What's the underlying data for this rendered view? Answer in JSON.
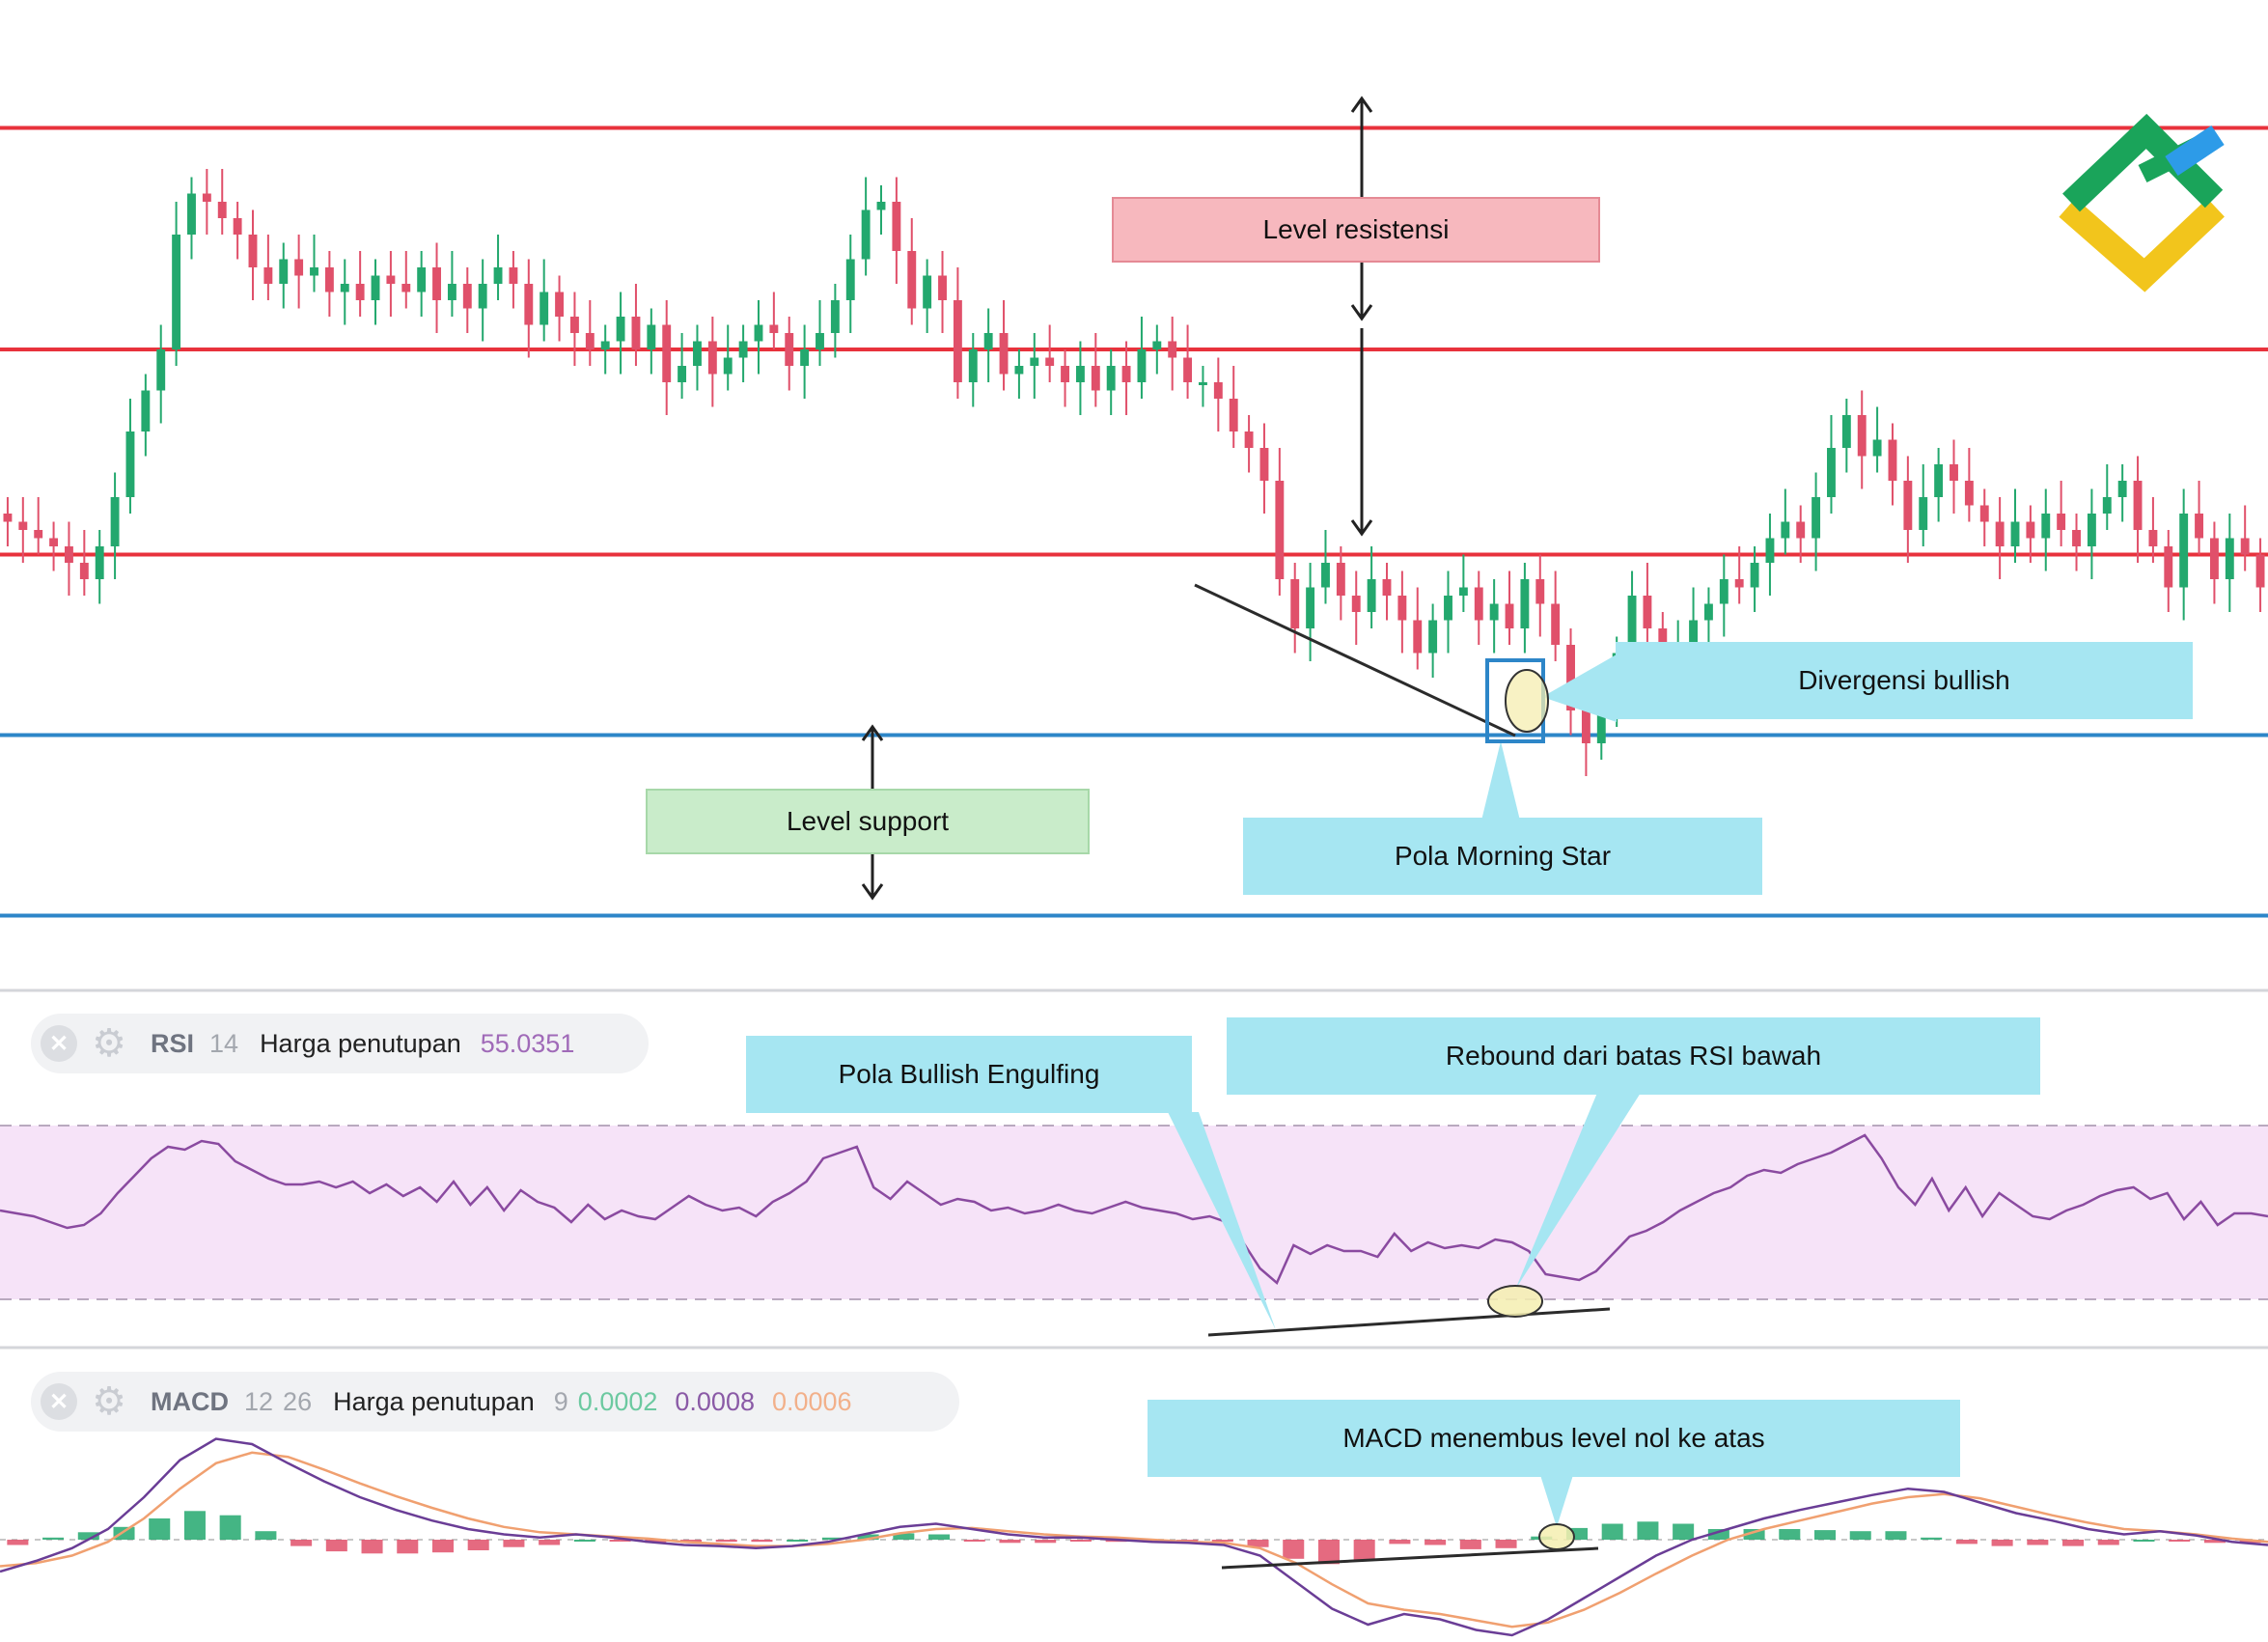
{
  "colors": {
    "resistance": "#e8323c",
    "support": "#2d86c8",
    "bull": "#23a86e",
    "bear": "#e0506a",
    "callout": "#a6e6f2",
    "resistance_box": "#f7b8be",
    "support_box": "#c9ecca",
    "rsi_fill": "#f6e3f8",
    "rsi_line": "#8a4aa0",
    "macd_line": "#6a3d96",
    "signal_line": "#f0a070",
    "logo_green": "#1aa45a",
    "logo_blue": "#2d9be8",
    "logo_yellow": "#f2c51c"
  },
  "annotations": {
    "resistance_label": "Level resistensi",
    "support_label": "Level support",
    "bullish_divergence": "Divergensi bullish",
    "morning_star": "Pola Morning Star",
    "bullish_engulfing": "Pola Bullish Engulfing",
    "rsi_rebound": "Rebound dari batas RSI bawah",
    "macd_cross": "MACD menembus level nol ke atas"
  },
  "rsi_panel": {
    "close_icon": "close-icon",
    "settings_icon": "gear-icon",
    "name": "RSI",
    "period": "14",
    "source": "Harga penutupan",
    "value": "55.0351"
  },
  "macd_panel": {
    "close_icon": "close-icon",
    "settings_icon": "gear-icon",
    "name": "MACD",
    "fast": "12",
    "slow": "26",
    "source": "Harga penutupan",
    "signal": "9",
    "histogram_value": "0.0002",
    "macd_value": "0.0008",
    "signal_value": "0.0006"
  },
  "chart_data": [
    {
      "type": "candlestick",
      "y_range": [
        0,
        100
      ],
      "levels": [
        {
          "kind": "resistance",
          "value": 95
        },
        {
          "kind": "resistance",
          "value": 68
        },
        {
          "kind": "resistance",
          "value": 43
        },
        {
          "kind": "support",
          "value": 21
        },
        {
          "kind": "support",
          "value": -1
        }
      ],
      "closes": [
        47,
        46,
        45,
        44,
        42,
        40,
        44,
        50,
        58,
        63,
        68,
        82,
        87,
        86,
        84,
        82,
        78,
        76,
        79,
        77,
        78,
        75,
        76,
        74,
        77,
        76,
        75,
        78,
        74,
        76,
        73,
        76,
        78,
        76,
        71,
        75,
        72,
        70,
        68,
        69,
        72,
        68,
        71,
        64,
        66,
        69,
        65,
        67,
        69,
        71,
        70,
        66,
        68,
        70,
        74,
        79,
        85,
        86,
        80,
        73,
        77,
        74,
        64,
        68,
        70,
        65,
        66,
        67,
        66,
        64,
        66,
        63,
        66,
        64,
        68,
        69,
        67,
        64,
        64,
        62,
        58,
        56,
        52,
        40,
        34,
        39,
        42,
        38,
        36,
        40,
        38,
        35,
        31,
        35,
        38,
        39,
        35,
        37,
        34,
        40,
        37,
        32,
        24,
        20,
        25,
        31,
        38,
        34,
        29,
        32,
        35,
        37,
        40,
        39,
        42,
        45,
        47,
        45,
        50,
        56,
        60,
        55,
        57,
        52,
        46,
        50,
        54,
        52,
        49,
        47,
        44,
        47,
        45,
        48,
        46,
        44,
        48,
        50,
        52,
        46,
        44,
        39,
        48,
        45,
        40,
        45,
        43,
        39
      ]
    },
    {
      "type": "line",
      "name": "RSI",
      "y_range": [
        0,
        100
      ],
      "band": [
        30,
        70
      ],
      "values": [
        52,
        51,
        50,
        48,
        46,
        47,
        51,
        58,
        64,
        70,
        74,
        73,
        76,
        75,
        69,
        66,
        63,
        61,
        61,
        62,
        60,
        62,
        58,
        61,
        57,
        60,
        55,
        62,
        54,
        60,
        52,
        59,
        55,
        53,
        48,
        54,
        49,
        52,
        50,
        49,
        53,
        57,
        54,
        52,
        53,
        50,
        55,
        58,
        62,
        70,
        72,
        74,
        60,
        56,
        62,
        58,
        54,
        56,
        55,
        52,
        53,
        51,
        52,
        54,
        52,
        51,
        53,
        55,
        53,
        52,
        51,
        49,
        50,
        48,
        41,
        32,
        27,
        40,
        37,
        40,
        38,
        38,
        36,
        44,
        38,
        41,
        39,
        40,
        39,
        42,
        41,
        38,
        30,
        29,
        28,
        31,
        37,
        43,
        45,
        48,
        52,
        55,
        58,
        60,
        64,
        66,
        65,
        68,
        70,
        72,
        75,
        78,
        70,
        60,
        54,
        63,
        52,
        60,
        50,
        58,
        54,
        50,
        49,
        52,
        54,
        57,
        59,
        60,
        56,
        58,
        49,
        55,
        47,
        51,
        51,
        50
      ]
    },
    {
      "type": "line",
      "name": "MACD",
      "y_range": [
        -1,
        1
      ],
      "macd": [
        -0.3,
        -0.2,
        -0.08,
        0.1,
        0.4,
        0.75,
        0.95,
        0.9,
        0.72,
        0.55,
        0.4,
        0.28,
        0.18,
        0.1,
        0.05,
        0.02,
        0.05,
        0.02,
        -0.02,
        -0.05,
        -0.06,
        -0.08,
        -0.06,
        -0.02,
        0.05,
        0.12,
        0.15,
        0.1,
        0.05,
        0.02,
        0.02,
        0.0,
        -0.02,
        -0.03,
        -0.05,
        -0.15,
        -0.4,
        -0.65,
        -0.8,
        -0.7,
        -0.75,
        -0.85,
        -0.9,
        -0.75,
        -0.55,
        -0.35,
        -0.15,
        0.0,
        0.1,
        0.2,
        0.28,
        0.35,
        0.42,
        0.48,
        0.45,
        0.35,
        0.25,
        0.18,
        0.1,
        0.05,
        0.08,
        0.04,
        -0.02,
        -0.05
      ],
      "signal": [
        -0.25,
        -0.22,
        -0.15,
        -0.02,
        0.2,
        0.48,
        0.72,
        0.82,
        0.78,
        0.66,
        0.53,
        0.41,
        0.3,
        0.2,
        0.12,
        0.07,
        0.05,
        0.03,
        0.01,
        -0.02,
        -0.04,
        -0.06,
        -0.06,
        -0.04,
        0.0,
        0.06,
        0.1,
        0.11,
        0.08,
        0.05,
        0.03,
        0.02,
        0.0,
        -0.02,
        -0.03,
        -0.08,
        -0.22,
        -0.42,
        -0.6,
        -0.66,
        -0.7,
        -0.76,
        -0.82,
        -0.78,
        -0.66,
        -0.5,
        -0.32,
        -0.15,
        0.0,
        0.1,
        0.18,
        0.26,
        0.34,
        0.4,
        0.43,
        0.39,
        0.31,
        0.23,
        0.16,
        0.1,
        0.08,
        0.05,
        0.01,
        -0.02
      ],
      "histogram": [
        -0.05,
        0.02,
        0.07,
        0.12,
        0.2,
        0.27,
        0.23,
        0.08,
        -0.06,
        -0.11,
        -0.13,
        -0.13,
        -0.12,
        -0.1,
        -0.07,
        -0.05,
        0.0,
        -0.01,
        -0.03,
        -0.03,
        -0.02,
        -0.02,
        0.0,
        0.02,
        0.05,
        0.06,
        0.05,
        -0.01,
        -0.03,
        -0.03,
        -0.01,
        -0.02,
        -0.02,
        -0.01,
        -0.02,
        -0.07,
        -0.18,
        -0.23,
        -0.2,
        -0.04,
        -0.05,
        -0.09,
        -0.08,
        0.03,
        0.11,
        0.15,
        0.17,
        0.15,
        0.1,
        0.1,
        0.1,
        0.09,
        0.08,
        0.08,
        0.02,
        -0.04,
        -0.06,
        -0.05,
        -0.06,
        -0.05,
        0.0,
        -0.01,
        -0.03,
        -0.03
      ]
    }
  ]
}
